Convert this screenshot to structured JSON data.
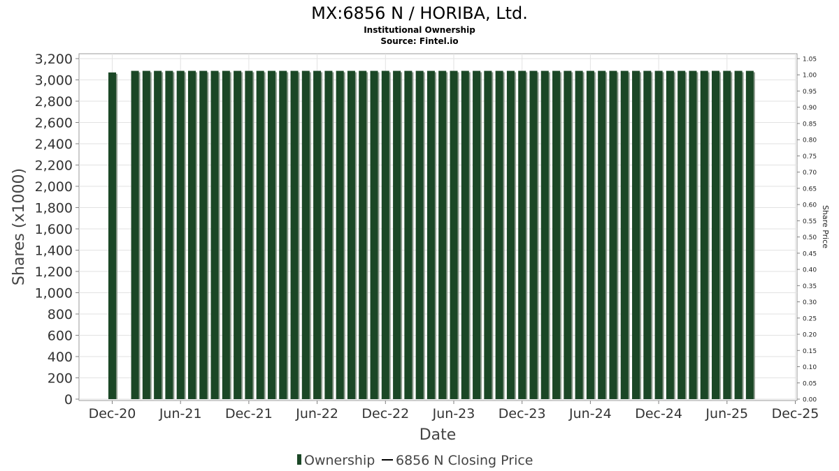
{
  "chart_data": {
    "type": "bar",
    "title": "MX:6856 N / HORIBA, Ltd.",
    "subtitle": "Institutional Ownership",
    "source": "Source: Fintel.io",
    "xlabel": "Date",
    "ylabel": "Shares (x1000)",
    "y2label": "Share Price",
    "ylim": [
      0,
      3200
    ],
    "y2lim": [
      0,
      1.05
    ],
    "yticks": [
      "0",
      "200",
      "400",
      "600",
      "800",
      "1,000",
      "1,200",
      "1,400",
      "1,600",
      "1,800",
      "2,000",
      "2,200",
      "2,400",
      "2,600",
      "2,800",
      "3,000",
      "3,200"
    ],
    "y2ticks": [
      "0.00",
      "0.05",
      "0.10",
      "0.15",
      "0.20",
      "0.25",
      "0.30",
      "0.35",
      "0.40",
      "0.45",
      "0.50",
      "0.55",
      "0.60",
      "0.65",
      "0.70",
      "0.75",
      "0.80",
      "0.85",
      "0.90",
      "0.95",
      "1.00",
      "1.05"
    ],
    "xticks": [
      "Dec-20",
      "Jun-21",
      "Dec-21",
      "Jun-22",
      "Dec-22",
      "Jun-23",
      "Dec-23",
      "Jun-24",
      "Dec-24",
      "Jun-25",
      "Dec-25"
    ],
    "xrange": [
      "2020-08",
      "2025-12"
    ],
    "grid": true,
    "legend_position": "bottom",
    "series": [
      {
        "name": "Ownership",
        "color": "#1b4726",
        "points": [
          {
            "date": "2020-12",
            "value": 3070
          },
          {
            "date": "2021-02",
            "value": 3085
          },
          {
            "date": "2021-03",
            "value": 3085
          },
          {
            "date": "2021-04",
            "value": 3085
          },
          {
            "date": "2021-05",
            "value": 3085
          },
          {
            "date": "2021-06",
            "value": 3085
          },
          {
            "date": "2021-07",
            "value": 3085
          },
          {
            "date": "2021-08",
            "value": 3085
          },
          {
            "date": "2021-09",
            "value": 3085
          },
          {
            "date": "2021-10",
            "value": 3085
          },
          {
            "date": "2021-11",
            "value": 3085
          },
          {
            "date": "2021-12",
            "value": 3085
          },
          {
            "date": "2022-01",
            "value": 3085
          },
          {
            "date": "2022-02",
            "value": 3085
          },
          {
            "date": "2022-03",
            "value": 3085
          },
          {
            "date": "2022-04",
            "value": 3085
          },
          {
            "date": "2022-05",
            "value": 3085
          },
          {
            "date": "2022-06",
            "value": 3085
          },
          {
            "date": "2022-07",
            "value": 3085
          },
          {
            "date": "2022-08",
            "value": 3085
          },
          {
            "date": "2022-09",
            "value": 3085
          },
          {
            "date": "2022-10",
            "value": 3085
          },
          {
            "date": "2022-11",
            "value": 3085
          },
          {
            "date": "2022-12",
            "value": 3085
          },
          {
            "date": "2023-01",
            "value": 3085
          },
          {
            "date": "2023-02",
            "value": 3085
          },
          {
            "date": "2023-03",
            "value": 3085
          },
          {
            "date": "2023-04",
            "value": 3085
          },
          {
            "date": "2023-05",
            "value": 3085
          },
          {
            "date": "2023-06",
            "value": 3085
          },
          {
            "date": "2023-07",
            "value": 3085
          },
          {
            "date": "2023-08",
            "value": 3085
          },
          {
            "date": "2023-09",
            "value": 3085
          },
          {
            "date": "2023-10",
            "value": 3085
          },
          {
            "date": "2023-11",
            "value": 3085
          },
          {
            "date": "2023-12",
            "value": 3085
          },
          {
            "date": "2024-01",
            "value": 3085
          },
          {
            "date": "2024-02",
            "value": 3085
          },
          {
            "date": "2024-03",
            "value": 3085
          },
          {
            "date": "2024-04",
            "value": 3085
          },
          {
            "date": "2024-05",
            "value": 3085
          },
          {
            "date": "2024-06",
            "value": 3085
          },
          {
            "date": "2024-07",
            "value": 3085
          },
          {
            "date": "2024-08",
            "value": 3085
          },
          {
            "date": "2024-09",
            "value": 3085
          },
          {
            "date": "2024-10",
            "value": 3085
          },
          {
            "date": "2024-11",
            "value": 3085
          },
          {
            "date": "2024-12",
            "value": 3085
          },
          {
            "date": "2025-01",
            "value": 3085
          },
          {
            "date": "2025-02",
            "value": 3085
          },
          {
            "date": "2025-03",
            "value": 3085
          },
          {
            "date": "2025-04",
            "value": 3085
          },
          {
            "date": "2025-05",
            "value": 3085
          },
          {
            "date": "2025-06",
            "value": 3085
          },
          {
            "date": "2025-07",
            "value": 3085
          },
          {
            "date": "2025-08",
            "value": 3085
          }
        ]
      },
      {
        "name": "6856 N Closing Price",
        "color": "#000000",
        "points": []
      }
    ]
  },
  "colors": {
    "bar": "#1b4726",
    "bar_shadow": "#8c9a8c",
    "grid": "#e2e2e2",
    "axis": "#7f7f7f"
  }
}
